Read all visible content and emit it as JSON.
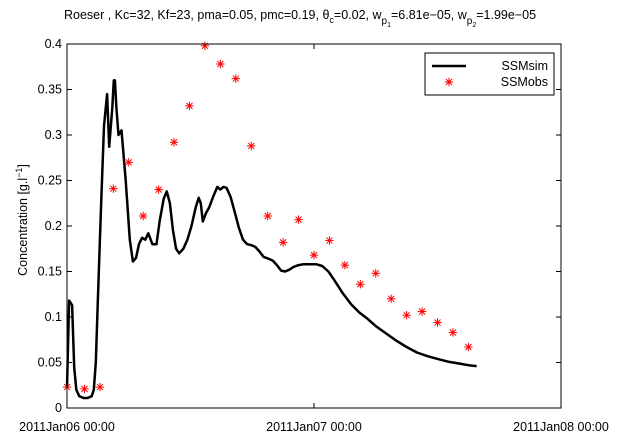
{
  "chart_data": {
    "type": "line",
    "title": {
      "prefix": "Roeser , Kc=32, Kf=23, pma=0.05, pmc=0.19, ",
      "theta_symbol": "θ",
      "theta_sub": "c",
      "theta_value": "=0.02, ",
      "wp1_w": "w",
      "wp1_p": "p",
      "wp1_sub": "1",
      "wp1_value": "=6.81e−05, ",
      "wp2_w": "w",
      "wp2_p": "p",
      "wp2_sub": "2",
      "wp2_value": "=1.99e−05"
    },
    "ylabel": {
      "main": "Concentration [g.l",
      "sup": "−1",
      "close": "]"
    },
    "xlabel": "",
    "x_axis": {
      "type": "date_hours",
      "start": "2011-01-06 00:00",
      "range_hours": [
        0,
        48
      ],
      "ticks": [
        {
          "hours": 0,
          "label": "2011Jan06 00:00"
        },
        {
          "hours": 24,
          "label": "2011Jan07 00:00"
        },
        {
          "hours": 48,
          "label": "2011Jan08 00:00"
        }
      ]
    },
    "y_axis": {
      "range": [
        0,
        0.4
      ],
      "ticks": [
        {
          "value": 0,
          "label": "0"
        },
        {
          "value": 0.05,
          "label": "0.05"
        },
        {
          "value": 0.1,
          "label": "0.1"
        },
        {
          "value": 0.15,
          "label": "0.15"
        },
        {
          "value": 0.2,
          "label": "0.2"
        },
        {
          "value": 0.25,
          "label": "0.25"
        },
        {
          "value": 0.3,
          "label": "0.3"
        },
        {
          "value": 0.35,
          "label": "0.35"
        },
        {
          "value": 0.4,
          "label": "0.4"
        }
      ]
    },
    "grid": false,
    "legend_position": "top-right",
    "series": [
      {
        "name": "SSMsim",
        "style": "line",
        "color": "#000000",
        "points": [
          [
            0.0,
            0.022
          ],
          [
            0.2,
            0.118
          ],
          [
            0.5,
            0.113
          ],
          [
            0.7,
            0.045
          ],
          [
            0.9,
            0.02
          ],
          [
            1.2,
            0.013
          ],
          [
            1.6,
            0.011
          ],
          [
            2.0,
            0.011
          ],
          [
            2.4,
            0.013
          ],
          [
            2.6,
            0.02
          ],
          [
            2.8,
            0.05
          ],
          [
            3.0,
            0.12
          ],
          [
            3.3,
            0.22
          ],
          [
            3.6,
            0.31
          ],
          [
            3.9,
            0.345
          ],
          [
            4.1,
            0.287
          ],
          [
            4.4,
            0.33
          ],
          [
            4.55,
            0.36
          ],
          [
            4.65,
            0.36
          ],
          [
            4.8,
            0.33
          ],
          [
            5.0,
            0.3
          ],
          [
            5.3,
            0.305
          ],
          [
            5.7,
            0.25
          ],
          [
            6.1,
            0.185
          ],
          [
            6.4,
            0.161
          ],
          [
            6.7,
            0.165
          ],
          [
            7.0,
            0.18
          ],
          [
            7.3,
            0.187
          ],
          [
            7.6,
            0.185
          ],
          [
            7.9,
            0.192
          ],
          [
            8.3,
            0.18
          ],
          [
            8.7,
            0.18
          ],
          [
            9.0,
            0.205
          ],
          [
            9.4,
            0.23
          ],
          [
            9.7,
            0.238
          ],
          [
            10.0,
            0.225
          ],
          [
            10.3,
            0.195
          ],
          [
            10.6,
            0.175
          ],
          [
            10.9,
            0.17
          ],
          [
            11.3,
            0.175
          ],
          [
            11.7,
            0.185
          ],
          [
            12.1,
            0.2
          ],
          [
            12.5,
            0.22
          ],
          [
            12.8,
            0.231
          ],
          [
            13.0,
            0.225
          ],
          [
            13.2,
            0.205
          ],
          [
            13.5,
            0.214
          ],
          [
            13.8,
            0.22
          ],
          [
            14.2,
            0.232
          ],
          [
            14.6,
            0.243
          ],
          [
            14.9,
            0.24
          ],
          [
            15.2,
            0.243
          ],
          [
            15.5,
            0.242
          ],
          [
            15.9,
            0.232
          ],
          [
            16.3,
            0.215
          ],
          [
            16.7,
            0.198
          ],
          [
            17.1,
            0.185
          ],
          [
            17.5,
            0.18
          ],
          [
            17.9,
            0.179
          ],
          [
            18.3,
            0.177
          ],
          [
            18.7,
            0.172
          ],
          [
            19.1,
            0.166
          ],
          [
            19.6,
            0.164
          ],
          [
            20.0,
            0.162
          ],
          [
            20.4,
            0.157
          ],
          [
            20.8,
            0.151
          ],
          [
            21.2,
            0.15
          ],
          [
            21.6,
            0.152
          ],
          [
            22.0,
            0.155
          ],
          [
            22.5,
            0.157
          ],
          [
            23.0,
            0.158
          ],
          [
            23.6,
            0.158
          ],
          [
            24.2,
            0.158
          ],
          [
            24.8,
            0.156
          ],
          [
            25.4,
            0.15
          ],
          [
            26.0,
            0.14
          ],
          [
            26.8,
            0.126
          ],
          [
            27.6,
            0.114
          ],
          [
            28.4,
            0.105
          ],
          [
            29.2,
            0.098
          ],
          [
            30.0,
            0.09
          ],
          [
            31.0,
            0.082
          ],
          [
            32.0,
            0.074
          ],
          [
            33.0,
            0.067
          ],
          [
            34.0,
            0.061
          ],
          [
            35.0,
            0.057
          ],
          [
            36.0,
            0.054
          ],
          [
            37.0,
            0.051
          ],
          [
            38.0,
            0.049
          ],
          [
            39.0,
            0.047
          ],
          [
            39.8,
            0.046
          ]
        ]
      },
      {
        "name": "SSMobs",
        "style": "markers",
        "marker": "asterisk",
        "color": "#ff0000",
        "points": [
          [
            0.0,
            0.023
          ],
          [
            1.7,
            0.021
          ],
          [
            3.2,
            0.023
          ],
          [
            4.5,
            0.241
          ],
          [
            6.0,
            0.27
          ],
          [
            7.4,
            0.211
          ],
          [
            8.9,
            0.24
          ],
          [
            10.4,
            0.292
          ],
          [
            11.9,
            0.332
          ],
          [
            13.4,
            0.398
          ],
          [
            14.9,
            0.378
          ],
          [
            16.4,
            0.362
          ],
          [
            17.9,
            0.288
          ],
          [
            19.5,
            0.211
          ],
          [
            21.0,
            0.182
          ],
          [
            22.5,
            0.207
          ],
          [
            24.0,
            0.168
          ],
          [
            25.5,
            0.184
          ],
          [
            27.0,
            0.157
          ],
          [
            28.5,
            0.136
          ],
          [
            30.0,
            0.148
          ],
          [
            31.5,
            0.12
          ],
          [
            33.0,
            0.102
          ],
          [
            34.5,
            0.106
          ],
          [
            36.0,
            0.094
          ],
          [
            37.5,
            0.083
          ],
          [
            39.0,
            0.067
          ]
        ]
      }
    ]
  }
}
